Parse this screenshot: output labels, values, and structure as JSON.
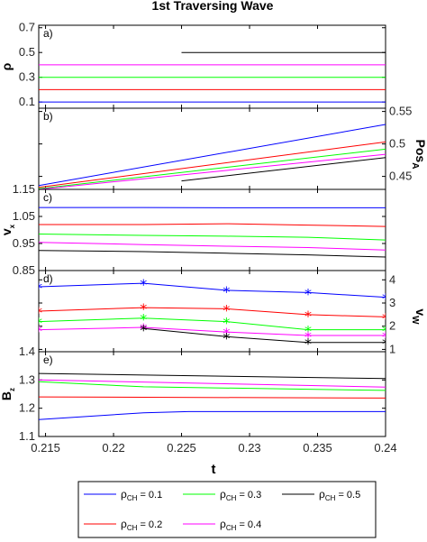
{
  "title": "1st Traversing Wave",
  "xlabel": "t",
  "x_ticks": [
    "0.215",
    "0.22",
    "0.225",
    "0.23",
    "0.235",
    "0.24"
  ],
  "legend": {
    "entries": [
      {
        "rho": "ρ",
        "sub": "CH",
        "value": " = 0.1",
        "color": "#0000ff"
      },
      {
        "rho": "ρ",
        "sub": "CH",
        "value": " = 0.3",
        "color": "#00ff00"
      },
      {
        "rho": "ρ",
        "sub": "CH",
        "value": " = 0.5",
        "color": "#000000"
      },
      {
        "rho": "ρ",
        "sub": "CH",
        "value": " = 0.2",
        "color": "#ff0000"
      },
      {
        "rho": "ρ",
        "sub": "CH",
        "value": " = 0.4",
        "color": "#ff00ff"
      }
    ]
  },
  "chart_data": [
    {
      "type": "line",
      "panel": "a)",
      "ylabel": "ρ",
      "ylim": [
        0.05,
        0.72
      ],
      "y_ticks": [
        "0.1",
        "0.3",
        "0.5",
        "0.7"
      ],
      "series": [
        {
          "color": "#0000ff",
          "x": [
            0.2145,
            0.24
          ],
          "y": [
            0.1,
            0.1
          ]
        },
        {
          "color": "#ff0000",
          "x": [
            0.2145,
            0.24
          ],
          "y": [
            0.2,
            0.2
          ]
        },
        {
          "color": "#00ff00",
          "x": [
            0.2145,
            0.24
          ],
          "y": [
            0.3,
            0.3
          ]
        },
        {
          "color": "#ff00ff",
          "x": [
            0.2145,
            0.24
          ],
          "y": [
            0.4,
            0.4
          ]
        },
        {
          "color": "#000000",
          "x": [
            0.225,
            0.24
          ],
          "y": [
            0.5,
            0.5
          ]
        }
      ],
      "y_values_note": ""
    },
    {
      "type": "line",
      "panel": "b)",
      "ylabel_right": "Pos",
      "ylabel_right_sub": "A",
      "ylim": [
        0.43,
        0.555
      ],
      "y_ticks_right": [
        "0.45",
        "0.5",
        "0.55"
      ],
      "series": [
        {
          "color": "#0000ff",
          "x": [
            0.2145,
            0.24
          ],
          "y": [
            0.436,
            0.53
          ]
        },
        {
          "color": "#ff0000",
          "x": [
            0.2145,
            0.24
          ],
          "y": [
            0.433,
            0.503
          ]
        },
        {
          "color": "#00ff00",
          "x": [
            0.2145,
            0.24
          ],
          "y": [
            0.431,
            0.492
          ]
        },
        {
          "color": "#ff00ff",
          "x": [
            0.2145,
            0.24
          ],
          "y": [
            0.43,
            0.484
          ]
        },
        {
          "color": "#000000",
          "x": [
            0.225,
            0.24
          ],
          "y": [
            0.443,
            0.479
          ]
        }
      ]
    },
    {
      "type": "line",
      "panel": "c)",
      "ylabel": "v",
      "ylabel_sub": "x",
      "ylim": [
        0.85,
        1.15
      ],
      "y_ticks": [
        "0.85",
        "0.95",
        "1.05",
        "1.15"
      ],
      "series": [
        {
          "color": "#0000ff",
          "x": [
            0.2145,
            0.2222,
            0.2283,
            0.2343,
            0.24
          ],
          "y": [
            1.083,
            1.083,
            1.082,
            1.082,
            1.082
          ]
        },
        {
          "color": "#ff0000",
          "x": [
            0.2145,
            0.2222,
            0.2283,
            0.2343,
            0.24
          ],
          "y": [
            1.02,
            1.02,
            1.023,
            1.018,
            1.013
          ]
        },
        {
          "color": "#00ff00",
          "x": [
            0.2145,
            0.2222,
            0.2283,
            0.2343,
            0.24
          ],
          "y": [
            0.985,
            0.98,
            0.977,
            0.973,
            0.963
          ]
        },
        {
          "color": "#ff00ff",
          "x": [
            0.2145,
            0.2222,
            0.2283,
            0.2343,
            0.24
          ],
          "y": [
            0.954,
            0.946,
            0.94,
            0.935,
            0.926
          ]
        },
        {
          "color": "#000000",
          "x": [
            0.2145,
            0.2222,
            0.2283,
            0.2343,
            0.24
          ],
          "y": [
            0.924,
            0.92,
            0.914,
            0.908,
            0.9
          ]
        }
      ]
    },
    {
      "type": "line",
      "panel": "d)",
      "ylabel_right": "v",
      "ylabel_right_sub": "W",
      "ylim": [
        0.9,
        4.4
      ],
      "y_ticks_right": [
        "1",
        "2",
        "3",
        "4"
      ],
      "series": [
        {
          "color": "#0000ff",
          "x": [
            0.2145,
            0.2222,
            0.2283,
            0.2343,
            0.24
          ],
          "y": [
            3.7,
            3.85,
            3.55,
            3.45,
            3.25
          ]
        },
        {
          "color": "#ff0000",
          "x": [
            0.2145,
            0.2222,
            0.2283,
            0.2343,
            0.24
          ],
          "y": [
            2.65,
            2.8,
            2.75,
            2.5,
            2.4
          ]
        },
        {
          "color": "#00ff00",
          "x": [
            0.2145,
            0.2222,
            0.2283,
            0.2343,
            0.24
          ],
          "y": [
            2.2,
            2.35,
            2.2,
            1.85,
            1.85
          ]
        },
        {
          "color": "#ff00ff",
          "x": [
            0.2145,
            0.2222,
            0.2283,
            0.2343,
            0.24
          ],
          "y": [
            1.85,
            1.95,
            1.75,
            1.6,
            1.6
          ]
        },
        {
          "color": "#000000",
          "x": [
            0.2222,
            0.2283,
            0.2343,
            0.24
          ],
          "y": [
            1.9,
            1.55,
            1.3,
            1.3
          ]
        }
      ]
    },
    {
      "type": "line",
      "panel": "e)",
      "ylabel": "B",
      "ylabel_sub": "z",
      "ylim": [
        1.1,
        1.4
      ],
      "y_ticks": [
        "1.1",
        "1.2",
        "1.3",
        "1.4"
      ],
      "series": [
        {
          "color": "#0000ff",
          "x": [
            0.2145,
            0.2222,
            0.2255,
            0.24
          ],
          "y": [
            1.16,
            1.184,
            1.188,
            1.188
          ]
        },
        {
          "color": "#ff0000",
          "x": [
            0.2145,
            0.24
          ],
          "y": [
            1.24,
            1.236
          ]
        },
        {
          "color": "#00ff00",
          "x": [
            0.2145,
            0.2222,
            0.24
          ],
          "y": [
            1.294,
            1.276,
            1.263
          ]
        },
        {
          "color": "#ff00ff",
          "x": [
            0.2145,
            0.24
          ],
          "y": [
            1.3,
            1.275
          ]
        },
        {
          "color": "#000000",
          "x": [
            0.2145,
            0.24
          ],
          "y": [
            1.323,
            1.305
          ]
        }
      ]
    }
  ]
}
